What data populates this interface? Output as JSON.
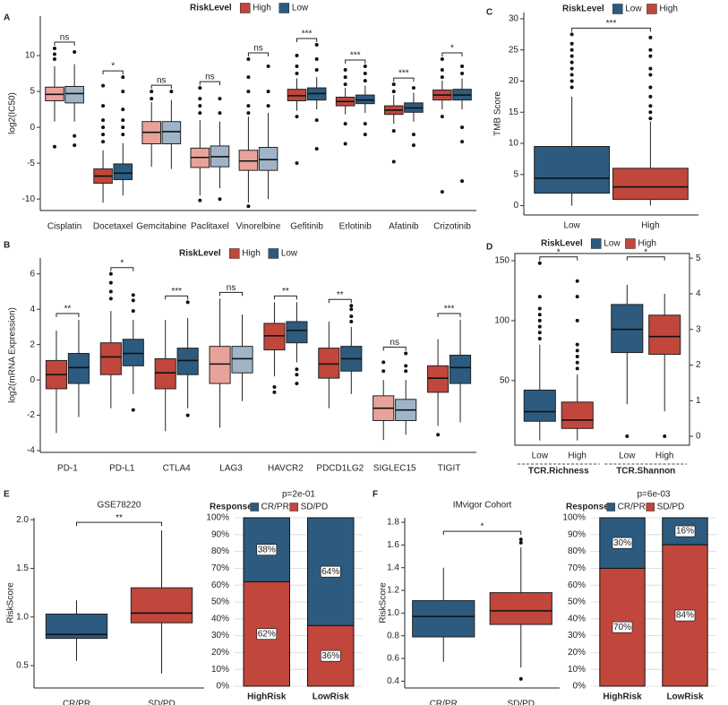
{
  "chart_data": [
    {
      "type": "box",
      "panel": "A",
      "ylabel": "log2(IC50)",
      "legend_title": "RiskLevel",
      "categories": [
        "Cisplatin",
        "Docetaxel",
        "Gemcitabine",
        "Paclitaxel",
        "Vinorelbine",
        "Gefitinib",
        "Erlotinib",
        "Afatinib",
        "Crizotinib"
      ],
      "significance": [
        "ns",
        "*",
        "ns",
        "ns",
        "ns",
        "***",
        "***",
        "***",
        "*"
      ],
      "series": [
        {
          "name": "High",
          "color": "#c1463b",
          "colors": [
            "#e9a29a",
            "#c1463b",
            "#e9a29a",
            "#e9a29a",
            "#e9a29a",
            "#c1463b",
            "#c1463b",
            "#c1463b",
            "#c1463b"
          ],
          "values": [
            {
              "whislo": 0.8,
              "q1": 3.7,
              "med": 4.6,
              "q3": 5.6,
              "whishi": 8.5,
              "outliers": [
                9.5,
                10.2,
                11,
                -2.7
              ]
            },
            {
              "whislo": -10.5,
              "q1": -7.8,
              "med": -6.8,
              "q3": -5.8,
              "whishi": -3.2,
              "outliers": [
                -2,
                -1,
                0,
                1,
                3,
                5.8
              ]
            },
            {
              "whislo": -5.5,
              "q1": -2.3,
              "med": -0.7,
              "q3": 0.8,
              "whishi": 3.5,
              "outliers": [
                4,
                5
              ]
            },
            {
              "whislo": -9.5,
              "q1": -5.6,
              "med": -4.2,
              "q3": -2.9,
              "whishi": 1,
              "outliers": [
                2,
                3,
                4,
                5.5,
                -10.2
              ]
            },
            {
              "whislo": -10.5,
              "q1": -6,
              "med": -4.7,
              "q3": -3.2,
              "whishi": 1.5,
              "outliers": [
                2,
                3,
                5,
                7,
                9.5,
                -11
              ]
            },
            {
              "whislo": 2.3,
              "q1": 3.7,
              "med": 4.4,
              "q3": 5.3,
              "whishi": 6.8,
              "outliers": [
                7.5,
                8.5,
                10,
                1.5,
                -5
              ]
            },
            {
              "whislo": 1.8,
              "q1": 3,
              "med": 3.6,
              "q3": 4.2,
              "whishi": 5.5,
              "outliers": [
                6,
                7,
                8,
                0.5,
                -2.3
              ]
            },
            {
              "whislo": 0.5,
              "q1": 1.8,
              "med": 2.4,
              "q3": 3,
              "whishi": 4.5,
              "outliers": [
                5,
                6,
                -0.5,
                -4.8
              ]
            },
            {
              "whislo": 2.5,
              "q1": 3.8,
              "med": 4.5,
              "q3": 5.2,
              "whishi": 6.5,
              "outliers": [
                7,
                8,
                9.5,
                1.5,
                -9
              ]
            }
          ]
        },
        {
          "name": "Low",
          "color": "#2c5b7f",
          "colors": [
            "#9fb5c7",
            "#2c5b7f",
            "#9fb5c7",
            "#9fb5c7",
            "#9fb5c7",
            "#2c5b7f",
            "#2c5b7f",
            "#2c5b7f",
            "#2c5b7f"
          ],
          "values": [
            {
              "whislo": 0.8,
              "q1": 3.4,
              "med": 4.7,
              "q3": 5.7,
              "whishi": 8.8,
              "outliers": [
                10.5,
                -1.2,
                -2.5
              ]
            },
            {
              "whislo": -9.5,
              "q1": -7.3,
              "med": -6.4,
              "q3": -5.1,
              "whishi": -2.2,
              "outliers": [
                -1,
                0,
                1,
                2.5,
                5,
                7
              ]
            },
            {
              "whislo": -5.8,
              "q1": -2.3,
              "med": -0.6,
              "q3": 0.8,
              "whishi": 3.8,
              "outliers": [
                5
              ]
            },
            {
              "whislo": -8.5,
              "q1": -5.5,
              "med": -4.1,
              "q3": -2.6,
              "whishi": 0.8,
              "outliers": [
                2,
                4,
                -10
              ]
            },
            {
              "whislo": -10,
              "q1": -6,
              "med": -4.5,
              "q3": -2.8,
              "whishi": 2,
              "outliers": [
                3,
                5,
                8.5
              ]
            },
            {
              "whislo": 2.5,
              "q1": 3.8,
              "med": 4.7,
              "q3": 5.5,
              "whishi": 7,
              "outliers": [
                8,
                9.5,
                11.5,
                1,
                -3
              ]
            },
            {
              "whislo": 2,
              "q1": 3.3,
              "med": 3.8,
              "q3": 4.5,
              "whishi": 5.8,
              "outliers": [
                6.5,
                7.5,
                8.5,
                0.5,
                -1
              ]
            },
            {
              "whislo": 0.8,
              "q1": 2.1,
              "med": 2.7,
              "q3": 3.4,
              "whishi": 4.8,
              "outliers": [
                5.5,
                -1,
                -2.5
              ]
            },
            {
              "whislo": 2.5,
              "q1": 3.8,
              "med": 4.5,
              "q3": 5.3,
              "whishi": 6.8,
              "outliers": [
                7.5,
                8.5,
                0,
                -2,
                -7.5
              ]
            }
          ]
        }
      ],
      "ylim": [
        -11.6,
        15.5
      ],
      "yticks": [
        -10,
        -5,
        0,
        5,
        10
      ],
      "grid": false
    },
    {
      "type": "box",
      "panel": "B",
      "ylabel": "log2(mRNA Expression)",
      "legend_title": "RiskLevel",
      "categories": [
        "PD-1",
        "PD-L1",
        "CTLA4",
        "LAG3",
        "HAVCR2",
        "PDCD1LG2",
        "SIGLEC15",
        "TIGIT"
      ],
      "significance": [
        "**",
        "*",
        "***",
        "ns",
        "**",
        "**",
        "ns",
        "***"
      ],
      "series": [
        {
          "name": "High",
          "color": "#c1463b",
          "colors": [
            "#c1463b",
            "#c1463b",
            "#c1463b",
            "#e9a29a",
            "#c1463b",
            "#c1463b",
            "#e9a29a",
            "#c1463b"
          ],
          "values": [
            {
              "whislo": -3,
              "q1": -0.5,
              "med": 0.3,
              "q3": 1.1,
              "whishi": 2.8,
              "outliers": []
            },
            {
              "whislo": -1.6,
              "q1": 0.3,
              "med": 1.3,
              "q3": 2.1,
              "whishi": 3.9,
              "outliers": [
                4.6,
                5,
                5.5,
                6
              ]
            },
            {
              "whislo": -2.9,
              "q1": -0.5,
              "med": 0.4,
              "q3": 1.2,
              "whishi": 3.4,
              "outliers": []
            },
            {
              "whislo": -2.7,
              "q1": -0.2,
              "med": 0.9,
              "q3": 1.9,
              "whishi": 4.6,
              "outliers": []
            },
            {
              "whislo": 0.2,
              "q1": 1.7,
              "med": 2.5,
              "q3": 3.2,
              "whishi": 4.4,
              "outliers": [
                -0.4,
                -0.7
              ]
            },
            {
              "whislo": -1.6,
              "q1": 0.1,
              "med": 0.9,
              "q3": 1.8,
              "whishi": 3.3,
              "outliers": []
            },
            {
              "whislo": -3.4,
              "q1": -2.3,
              "med": -1.6,
              "q3": -0.9,
              "whishi": 0,
              "outliers": [
                0.5,
                1
              ]
            },
            {
              "whislo": -2.6,
              "q1": -0.7,
              "med": 0.1,
              "q3": 0.8,
              "whishi": 2.3,
              "outliers": [
                -3.1
              ]
            }
          ]
        },
        {
          "name": "Low",
          "color": "#2c5b7f",
          "colors": [
            "#2c5b7f",
            "#2c5b7f",
            "#2c5b7f",
            "#9fb5c7",
            "#2c5b7f",
            "#2c5b7f",
            "#9fb5c7",
            "#2c5b7f"
          ],
          "values": [
            {
              "whislo": -2.1,
              "q1": -0.2,
              "med": 0.7,
              "q3": 1.5,
              "whishi": 3.4,
              "outliers": []
            },
            {
              "whislo": -0.8,
              "q1": 0.8,
              "med": 1.5,
              "q3": 2.3,
              "whishi": 3.4,
              "outliers": [
                3.9,
                4.5,
                4.8,
                -1.7
              ]
            },
            {
              "whislo": -1.6,
              "q1": 0.3,
              "med": 1.1,
              "q3": 1.8,
              "whishi": 3.5,
              "outliers": [
                -2,
                4.4
              ]
            },
            {
              "whislo": -1.2,
              "q1": 0.4,
              "med": 1.2,
              "q3": 1.9,
              "whishi": 3.7,
              "outliers": []
            },
            {
              "whislo": 1,
              "q1": 2.1,
              "med": 2.8,
              "q3": 3.3,
              "whishi": 4.4,
              "outliers": [
                0.6,
                0.3,
                -0.2
              ]
            },
            {
              "whislo": -0.8,
              "q1": 0.5,
              "med": 1.2,
              "q3": 1.9,
              "whishi": 3,
              "outliers": [
                3.3,
                3.6,
                4,
                4.2
              ]
            },
            {
              "whislo": -3.1,
              "q1": -2.3,
              "med": -1.7,
              "q3": -1.1,
              "whishi": 0,
              "outliers": [
                0.5,
                0.8,
                1.5
              ]
            },
            {
              "whislo": -2.4,
              "q1": -0.2,
              "med": 0.7,
              "q3": 1.4,
              "whishi": 3.4,
              "outliers": []
            }
          ]
        }
      ],
      "ylim": [
        -4.1,
        6.9
      ],
      "yticks": [
        -4,
        -2,
        0,
        2,
        4,
        6
      ],
      "grid": false
    },
    {
      "type": "box",
      "panel": "C",
      "ylabel": "TMB Score",
      "legend_title": "RiskLevel",
      "box_labels": true,
      "significance": [
        "***"
      ],
      "series": [
        {
          "name": "Low",
          "color": "#2c5b7f",
          "values": [
            {
              "whislo": 0,
              "q1": 2,
              "med": 4.4,
              "q3": 9.5,
              "whishi": 17.5,
              "outliers": [
                19,
                20,
                21,
                22,
                23,
                24,
                25,
                26,
                27.5
              ]
            }
          ]
        },
        {
          "name": "High",
          "color": "#c1463b",
          "values": [
            {
              "whislo": 0,
              "q1": 1,
              "med": 3,
              "q3": 6,
              "whishi": 13.5,
              "outliers": [
                14,
                15,
                16,
                17.5,
                19,
                21,
                22,
                24,
                25,
                27
              ]
            }
          ]
        }
      ],
      "ylim": [
        -1.5,
        31
      ],
      "yticks": [
        0,
        5,
        10,
        15,
        20,
        25,
        30
      ],
      "grid": false
    },
    {
      "type": "box",
      "panel": "D",
      "legend_title": "RiskLevel",
      "box_labels": true,
      "categories": [
        "TCR.Richness",
        "TCR.Shannon"
      ],
      "category_axes": [
        "y",
        "y2"
      ],
      "significance": [
        "*",
        "*"
      ],
      "series": [
        {
          "name": "Low",
          "color": "#2c5b7f",
          "values": [
            {
              "whislo": 0,
              "q1": 16,
              "med": 24,
              "q3": 42,
              "whishi": 80,
              "outliers": [
                85,
                90,
                95,
                100,
                105,
                110,
                120,
                148
              ]
            },
            {
              "whislo": 0.9,
              "q1": 2.35,
              "med": 3,
              "q3": 3.7,
              "whishi": 4.25,
              "outliers": [
                0
              ]
            }
          ]
        },
        {
          "name": "High",
          "color": "#c1463b",
          "values": [
            {
              "whislo": 0,
              "q1": 10,
              "med": 17,
              "q3": 32,
              "whishi": 55,
              "outliers": [
                60,
                65,
                70,
                75,
                80,
                100,
                120,
                133
              ]
            },
            {
              "whislo": 0.7,
              "q1": 2.3,
              "med": 2.8,
              "q3": 3.4,
              "whishi": 4,
              "outliers": [
                0
              ]
            }
          ]
        }
      ],
      "ylim": [
        -4,
        156
      ],
      "yticks": [
        50,
        100,
        150
      ],
      "y2lim": [
        -0.25,
        5.13
      ],
      "y2ticks": [
        0,
        1,
        2,
        3,
        4,
        5
      ],
      "grid": false
    },
    {
      "type": "box",
      "panel": "E",
      "title": "GSE78220",
      "ylabel": "RiskScore",
      "categories": [
        "CR/PR",
        "SD/PD"
      ],
      "colors": [
        "#2c5b7f",
        "#c1463b"
      ],
      "significance": "**",
      "values": [
        {
          "whislo": 0.55,
          "q1": 0.78,
          "med": 0.82,
          "q3": 1.03,
          "whishi": 1.17,
          "outliers": []
        },
        {
          "whislo": 0.42,
          "q1": 0.94,
          "med": 1.04,
          "q3": 1.3,
          "whishi": 1.89,
          "outliers": []
        }
      ],
      "ylim": [
        0.27,
        2.02
      ],
      "yticks": [
        0.5,
        {
          "value": 1,
          "label": "1.0"
        },
        1.5,
        {
          "value": 2,
          "label": "2.0"
        }
      ],
      "grid": false
    },
    {
      "type": "stacked_bar",
      "title": "p=2e-01",
      "legend_title": "Response",
      "categories": [
        "HighRisk",
        "LowRisk"
      ],
      "series": [
        {
          "name": "CR/PR",
          "color": "#2c5b7f",
          "values": [
            38,
            64
          ],
          "value_labels": [
            "38%",
            "64%"
          ]
        },
        {
          "name": "SD/PD",
          "color": "#c1463b",
          "values": [
            62,
            36
          ],
          "value_labels": [
            "62%",
            "36%"
          ]
        }
      ],
      "ylim": [
        0,
        100
      ],
      "yticks": [
        {
          "value": 0,
          "label": "0%"
        },
        {
          "value": 10,
          "label": "10%"
        },
        {
          "value": 20,
          "label": "20%"
        },
        {
          "value": 30,
          "label": "30%"
        },
        {
          "value": 40,
          "label": "40%"
        },
        {
          "value": 50,
          "label": "50%"
        },
        {
          "value": 60,
          "label": "60%"
        },
        {
          "value": 70,
          "label": "70%"
        },
        {
          "value": 80,
          "label": "80%"
        },
        {
          "value": 90,
          "label": "90%"
        },
        {
          "value": 100,
          "label": "100%"
        }
      ],
      "grid": true
    },
    {
      "type": "box",
      "panel": "F",
      "title": "IMvigor Cohort",
      "ylabel": "RiskScore",
      "categories": [
        "CR/PR",
        "SD/PD"
      ],
      "colors": [
        "#2c5b7f",
        "#c1463b"
      ],
      "significance": "*",
      "values": [
        {
          "whislo": 0.57,
          "q1": 0.79,
          "med": 0.97,
          "q3": 1.11,
          "whishi": 1.4,
          "outliers": []
        },
        {
          "whislo": 0.52,
          "q1": 0.9,
          "med": 1.02,
          "q3": 1.18,
          "whishi": 1.58,
          "outliers": [
            1.62,
            1.65,
            0.42
          ]
        }
      ],
      "ylim": [
        0.34,
        1.84
      ],
      "yticks": [
        0.4,
        0.6,
        0.8,
        {
          "value": 1,
          "label": "1.0"
        },
        1.2,
        1.4,
        1.6,
        1.8
      ],
      "grid": false
    },
    {
      "type": "stacked_bar",
      "title": "p=6e-03",
      "legend_title": "Response",
      "categories": [
        "HighRisk",
        "LowRisk"
      ],
      "series": [
        {
          "name": "CR/PR",
          "color": "#2c5b7f",
          "values": [
            30,
            16
          ],
          "value_labels": [
            "30%",
            "16%"
          ]
        },
        {
          "name": "SD/PD",
          "color": "#c1463b",
          "values": [
            70,
            84
          ],
          "value_labels": [
            "70%",
            "84%"
          ]
        }
      ],
      "ylim": [
        0,
        100
      ],
      "yticks": [
        {
          "value": 0,
          "label": "0%"
        },
        {
          "value": 10,
          "label": "10%"
        },
        {
          "value": 20,
          "label": "20%"
        },
        {
          "value": 30,
          "label": "30%"
        },
        {
          "value": 40,
          "label": "40%"
        },
        {
          "value": 50,
          "label": "50%"
        },
        {
          "value": 60,
          "label": "60%"
        },
        {
          "value": 70,
          "label": "70%"
        },
        {
          "value": 80,
          "label": "80%"
        },
        {
          "value": 90,
          "label": "90%"
        },
        {
          "value": 100,
          "label": "100%"
        }
      ],
      "grid": true
    }
  ]
}
